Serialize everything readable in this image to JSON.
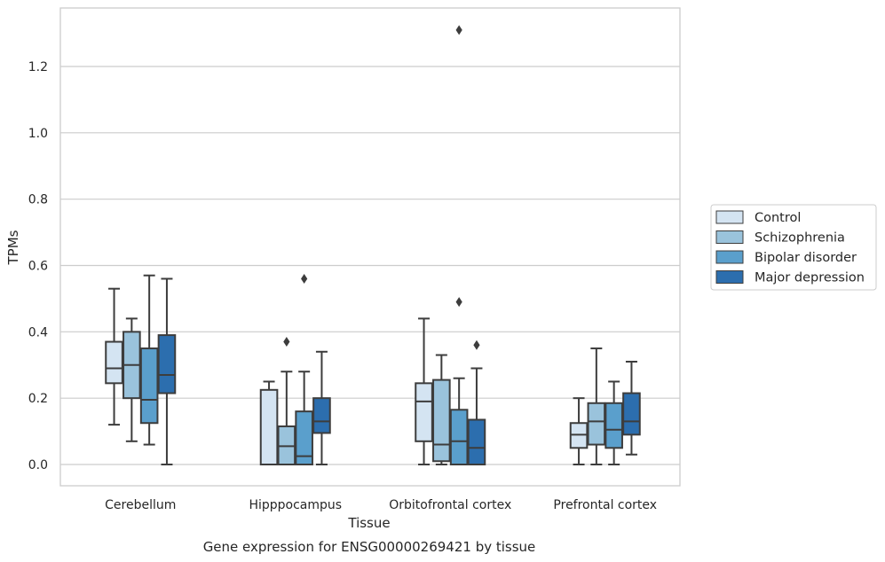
{
  "chart_data": {
    "type": "box",
    "title": "",
    "caption": "Gene expression for ENSG00000269421 by tissue",
    "xlabel": "Tissue",
    "ylabel": "TPMs",
    "ylim": [
      -0.065,
      1.38
    ],
    "yticks": [
      0.0,
      0.2,
      0.4,
      0.6,
      0.8,
      1.0,
      1.2
    ],
    "ytick_labels": [
      "0.0",
      "0.2",
      "0.4",
      "0.6",
      "0.8",
      "1.0",
      "1.2"
    ],
    "grid": "horizontal",
    "legend_placement": "center-right outside",
    "categories": [
      "Cerebellum",
      "Hipppocampus",
      "Orbitofrontal cortex",
      "Prefrontal cortex"
    ],
    "series": [
      {
        "name": "Control",
        "color": "#d4e4f2",
        "boxes": [
          {
            "whislo": 0.12,
            "q1": 0.245,
            "med": 0.29,
            "q3": 0.37,
            "whishi": 0.53,
            "fliers": []
          },
          {
            "whislo": 0.0,
            "q1": 0.0,
            "med": 0.0,
            "q3": 0.225,
            "whishi": 0.25,
            "fliers": []
          },
          {
            "whislo": 0.0,
            "q1": 0.07,
            "med": 0.19,
            "q3": 0.245,
            "whishi": 0.44,
            "fliers": []
          },
          {
            "whislo": 0.0,
            "q1": 0.05,
            "med": 0.09,
            "q3": 0.125,
            "whishi": 0.2,
            "fliers": []
          }
        ]
      },
      {
        "name": "Schizophrenia",
        "color": "#9ac3dc",
        "boxes": [
          {
            "whislo": 0.07,
            "q1": 0.2,
            "med": 0.3,
            "q3": 0.4,
            "whishi": 0.44,
            "fliers": []
          },
          {
            "whislo": 0.0,
            "q1": 0.0,
            "med": 0.055,
            "q3": 0.115,
            "whishi": 0.28,
            "fliers": [
              0.37
            ]
          },
          {
            "whislo": 0.0,
            "q1": 0.01,
            "med": 0.06,
            "q3": 0.255,
            "whishi": 0.33,
            "fliers": []
          },
          {
            "whislo": 0.0,
            "q1": 0.06,
            "med": 0.13,
            "q3": 0.185,
            "whishi": 0.35,
            "fliers": []
          }
        ]
      },
      {
        "name": "Bipolar disorder",
        "color": "#5a9fcc",
        "boxes": [
          {
            "whislo": 0.06,
            "q1": 0.125,
            "med": 0.195,
            "q3": 0.35,
            "whishi": 0.57,
            "fliers": []
          },
          {
            "whislo": 0.0,
            "q1": 0.0,
            "med": 0.025,
            "q3": 0.16,
            "whishi": 0.28,
            "fliers": [
              0.56
            ]
          },
          {
            "whislo": 0.0,
            "q1": 0.0,
            "med": 0.07,
            "q3": 0.165,
            "whishi": 0.26,
            "fliers": [
              1.31,
              0.49
            ]
          },
          {
            "whislo": 0.0,
            "q1": 0.05,
            "med": 0.105,
            "q3": 0.185,
            "whishi": 0.25,
            "fliers": []
          }
        ]
      },
      {
        "name": "Major depression",
        "color": "#2c6eae",
        "boxes": [
          {
            "whislo": 0.0,
            "q1": 0.215,
            "med": 0.27,
            "q3": 0.39,
            "whishi": 0.56,
            "fliers": []
          },
          {
            "whislo": 0.0,
            "q1": 0.095,
            "med": 0.13,
            "q3": 0.2,
            "whishi": 0.34,
            "fliers": []
          },
          {
            "whislo": 0.0,
            "q1": 0.0,
            "med": 0.05,
            "q3": 0.135,
            "whishi": 0.29,
            "fliers": [
              0.36
            ]
          },
          {
            "whislo": 0.03,
            "q1": 0.09,
            "med": 0.13,
            "q3": 0.215,
            "whishi": 0.31,
            "fliers": []
          }
        ]
      }
    ]
  },
  "colors": {
    "grid": "#cccccc",
    "frame": "#cccccc",
    "box_edge": "#3d3d3d",
    "text": "#262626"
  }
}
